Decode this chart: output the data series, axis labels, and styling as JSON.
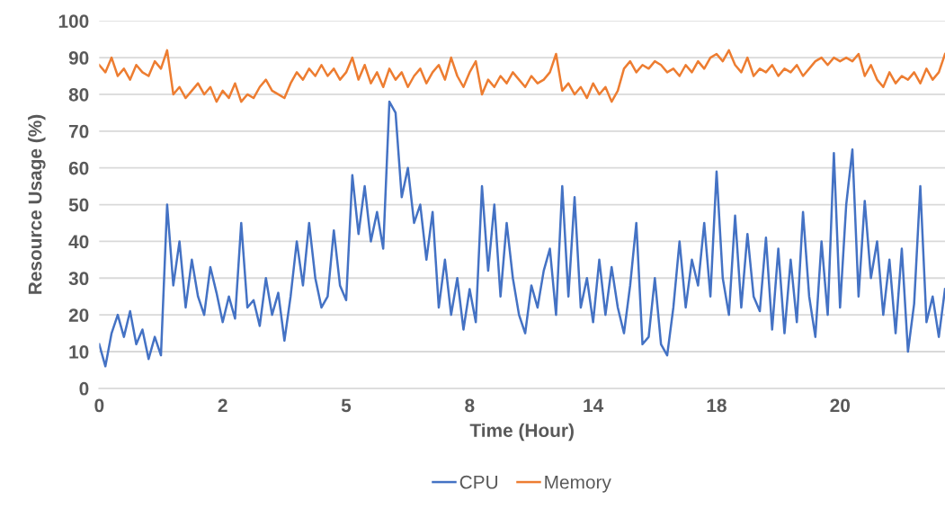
{
  "chart_data": {
    "type": "line",
    "xlabel": "Time (Hour)",
    "ylabel": "Resource Usage (%)",
    "categories": [
      "0",
      null,
      null,
      null,
      null,
      null,
      null,
      null,
      null,
      null,
      null,
      null,
      null,
      null,
      null,
      null,
      null,
      null,
      null,
      null,
      "2",
      null,
      null,
      null,
      null,
      null,
      null,
      null,
      null,
      null,
      null,
      null,
      null,
      null,
      null,
      null,
      null,
      null,
      null,
      null,
      "5",
      null,
      null,
      null,
      null,
      null,
      null,
      null,
      null,
      null,
      null,
      null,
      null,
      null,
      null,
      null,
      null,
      null,
      null,
      null,
      "8",
      null,
      null,
      null,
      null,
      null,
      null,
      null,
      null,
      null,
      null,
      null,
      null,
      null,
      null,
      null,
      null,
      null,
      null,
      null,
      "14",
      null,
      null,
      null,
      null,
      null,
      null,
      null,
      null,
      null,
      null,
      null,
      null,
      null,
      null,
      null,
      null,
      null,
      null,
      null,
      "18",
      null,
      null,
      null,
      null,
      null,
      null,
      null,
      null,
      null,
      null,
      null,
      null,
      null,
      null,
      null,
      null,
      null,
      null,
      null,
      "20",
      null,
      null,
      null,
      null,
      null,
      null,
      null,
      null,
      null,
      null,
      null,
      null,
      null,
      null,
      null,
      null,
      null
    ],
    "series": [
      {
        "name": "CPU",
        "color": "#4472c4",
        "values": [
          12,
          6,
          15,
          20,
          14,
          21,
          12,
          16,
          8,
          14,
          9,
          50,
          28,
          40,
          22,
          35,
          25,
          20,
          33,
          26,
          18,
          25,
          19,
          45,
          22,
          24,
          17,
          30,
          20,
          26,
          13,
          25,
          40,
          28,
          45,
          30,
          22,
          25,
          43,
          28,
          24,
          58,
          42,
          55,
          40,
          48,
          38,
          78,
          75,
          52,
          60,
          45,
          50,
          35,
          48,
          22,
          35,
          20,
          30,
          16,
          27,
          18,
          55,
          32,
          50,
          25,
          45,
          30,
          20,
          15,
          28,
          22,
          32,
          38,
          20,
          55,
          25,
          52,
          22,
          30,
          18,
          35,
          20,
          33,
          22,
          15,
          28,
          45,
          12,
          14,
          30,
          12,
          9,
          22,
          40,
          22,
          35,
          28,
          45,
          25,
          59,
          30,
          20,
          47,
          22,
          42,
          25,
          21,
          41,
          16,
          38,
          15,
          35,
          18,
          48,
          25,
          14,
          40,
          20,
          64,
          22,
          50,
          65,
          25,
          51,
          30,
          40,
          20,
          35,
          15,
          38,
          10,
          23,
          55,
          18,
          25,
          14,
          27
        ]
      },
      {
        "name": "Memory",
        "color": "#ed7d31",
        "values": [
          88,
          86,
          90,
          85,
          87,
          84,
          88,
          86,
          85,
          89,
          87,
          92,
          80,
          82,
          79,
          81,
          83,
          80,
          82,
          78,
          81,
          79,
          83,
          78,
          80,
          79,
          82,
          84,
          81,
          80,
          79,
          83,
          86,
          84,
          87,
          85,
          88,
          85,
          87,
          84,
          86,
          90,
          84,
          88,
          83,
          86,
          82,
          87,
          84,
          86,
          82,
          85,
          87,
          83,
          86,
          88,
          84,
          90,
          85,
          82,
          86,
          89,
          80,
          84,
          82,
          85,
          83,
          86,
          84,
          82,
          85,
          83,
          84,
          86,
          91,
          81,
          83,
          80,
          82,
          79,
          83,
          80,
          82,
          78,
          81,
          87,
          89,
          86,
          88,
          87,
          89,
          88,
          86,
          87,
          85,
          88,
          86,
          89,
          87,
          90,
          91,
          89,
          92,
          88,
          86,
          90,
          85,
          87,
          86,
          88,
          85,
          87,
          86,
          88,
          85,
          87,
          89,
          90,
          88,
          90,
          89,
          90,
          89,
          91,
          85,
          88,
          84,
          82,
          86,
          83,
          85,
          84,
          86,
          83,
          87,
          84,
          86,
          91
        ]
      }
    ],
    "ylim": [
      0,
      100
    ],
    "yticks": [
      0,
      10,
      20,
      30,
      40,
      50,
      60,
      70,
      80,
      90,
      100
    ],
    "grid": "y",
    "legend": "bottom",
    "marker": "none",
    "line_style": "solid"
  }
}
